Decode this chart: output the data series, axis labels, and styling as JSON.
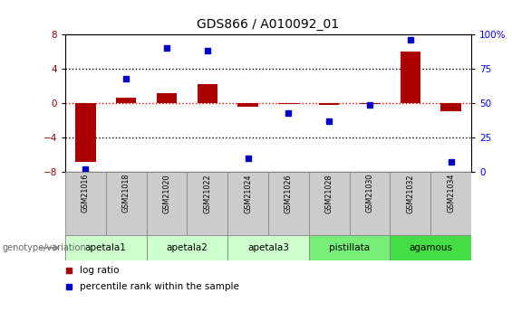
{
  "title": "GDS866 / A010092_01",
  "samples": [
    "GSM21016",
    "GSM21018",
    "GSM21020",
    "GSM21022",
    "GSM21024",
    "GSM21026",
    "GSM21028",
    "GSM21030",
    "GSM21032",
    "GSM21034"
  ],
  "log_ratio": [
    -6.8,
    0.6,
    1.2,
    2.2,
    -0.4,
    -0.1,
    -0.2,
    -0.1,
    6.0,
    -0.9
  ],
  "percentile_rank": [
    2,
    68,
    90,
    88,
    10,
    43,
    37,
    49,
    96,
    7
  ],
  "group_spans": [
    {
      "name": "apetala1",
      "start": 0,
      "end": 1,
      "color": "#ccffcc"
    },
    {
      "name": "apetala2",
      "start": 2,
      "end": 3,
      "color": "#ccffcc"
    },
    {
      "name": "apetala3",
      "start": 4,
      "end": 5,
      "color": "#ccffcc"
    },
    {
      "name": "pistillata",
      "start": 6,
      "end": 7,
      "color": "#77ee77"
    },
    {
      "name": "agamous",
      "start": 8,
      "end": 9,
      "color": "#44dd44"
    }
  ],
  "bar_color": "#aa0000",
  "dot_color": "#0000cc",
  "yticks_left": [
    -8,
    -4,
    0,
    4,
    8
  ],
  "yticks_right": [
    0,
    25,
    50,
    75,
    100
  ],
  "genotype_label": "genotype/variation"
}
